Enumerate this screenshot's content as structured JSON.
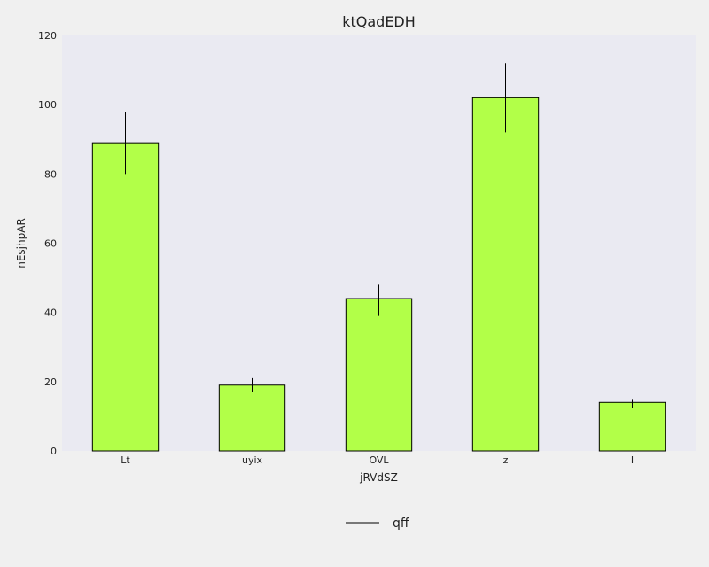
{
  "colors": {
    "page_background": "#f0f0f0",
    "plot_background": "#eaeaf2",
    "bar_fill": "#b2ff48",
    "bar_edge": "#000000",
    "error_bar": "#000000"
  },
  "chart_data": {
    "type": "bar",
    "title": "ktQadEDH",
    "xlabel": "jRVdSZ",
    "ylabel": "nEsjhpAR",
    "categories": [
      "Lt",
      "uyix",
      "OVL",
      "z",
      "I"
    ],
    "series": [
      {
        "name": "qff",
        "values": [
          89,
          19,
          44,
          102,
          14
        ],
        "error_bar_range": [
          [
            80,
            98
          ],
          [
            17,
            21
          ],
          [
            39,
            48
          ],
          [
            92,
            112
          ],
          [
            12.5,
            15
          ]
        ]
      }
    ],
    "ylim": [
      0,
      120
    ],
    "yticks": [
      0,
      20,
      40,
      60,
      80,
      100,
      120
    ],
    "grid": false,
    "legend_position": "bottom-center"
  }
}
